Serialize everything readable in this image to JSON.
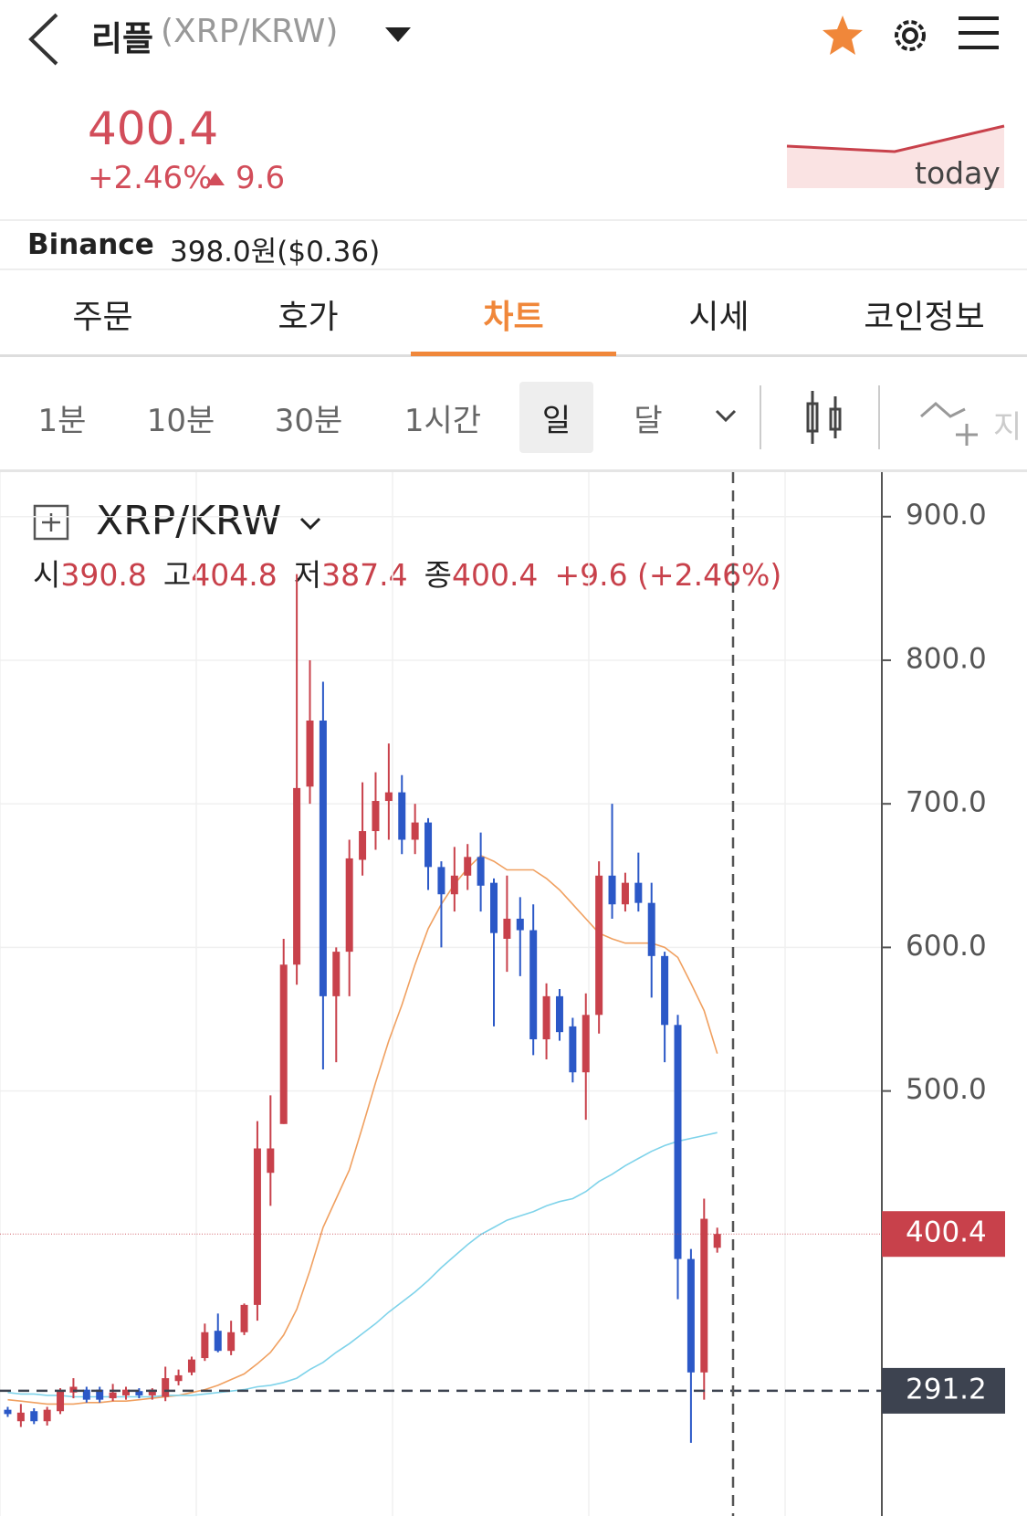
{
  "header": {
    "name": "리플",
    "pair": "(XRP/KRW)",
    "price": "400.4",
    "change_pct": "+2.46%",
    "change": "9.6",
    "spark_label": "today"
  },
  "exchange": {
    "name": "Binance",
    "price": "398.0원($0.36)"
  },
  "tabs": [
    "주문",
    "호가",
    "차트",
    "시세",
    "코인정보"
  ],
  "intervals": [
    "1분",
    "10분",
    "30분",
    "1시간",
    "일",
    "달"
  ],
  "tool_partial": "지",
  "chart_data": {
    "type": "candlestick",
    "symbol": "XRP/KRW",
    "legend": [
      {
        "label": "시",
        "value": 390.8
      },
      {
        "label": "고",
        "value": 404.8
      },
      {
        "label": "저",
        "value": 387.4
      },
      {
        "label": "종",
        "value": 400.4
      }
    ],
    "legend_change": "+9.6 (+2.46%)",
    "up_color": "#c8414b",
    "down_color": "#2b58c7",
    "open": [
      278,
      270,
      277,
      270,
      277,
      290,
      292,
      292,
      286,
      288,
      291,
      288,
      287,
      298,
      304,
      314,
      333,
      319,
      332,
      351,
      443,
      477,
      588,
      712,
      758,
      566,
      597,
      661,
      681,
      702,
      708,
      675,
      687,
      656,
      637,
      650,
      663,
      645,
      606,
      620,
      612,
      536,
      566,
      545,
      513,
      553,
      650,
      630,
      645,
      631,
      594,
      546,
      383,
      304,
      390.8
    ],
    "high": [
      280,
      282,
      279,
      280,
      293,
      300,
      294,
      294,
      296,
      294,
      293,
      293,
      308,
      306,
      315,
      338,
      345,
      340,
      352,
      479,
      497,
      606,
      860,
      800,
      785,
      600,
      675,
      715,
      722,
      742,
      720,
      700,
      690,
      660,
      670,
      672,
      680,
      648,
      650,
      635,
      630,
      575,
      571,
      551,
      568,
      660,
      700,
      652,
      666,
      645,
      597,
      553,
      390,
      425,
      404.8
    ],
    "low": [
      273,
      266,
      268,
      267,
      275,
      286,
      283,
      283,
      284,
      285,
      286,
      285,
      284,
      295,
      302,
      312,
      318,
      316,
      330,
      340,
      420,
      477,
      574,
      700,
      515,
      520,
      566,
      650,
      668,
      675,
      665,
      665,
      640,
      600,
      625,
      640,
      625,
      545,
      583,
      580,
      525,
      522,
      535,
      506,
      480,
      540,
      620,
      625,
      625,
      565,
      520,
      355,
      255,
      285,
      387.4
    ],
    "close": [
      275,
      276,
      270,
      278,
      291,
      294,
      285,
      285,
      290,
      292,
      288,
      292,
      300,
      302,
      313,
      332,
      319,
      332,
      351,
      460,
      460,
      588,
      711,
      758,
      566,
      597,
      662,
      681,
      702,
      708,
      675,
      687,
      656,
      637,
      650,
      663,
      643,
      610,
      620,
      612,
      536,
      566,
      541,
      513,
      553,
      650,
      630,
      645,
      631,
      594,
      546,
      383,
      304,
      411,
      400.4
    ],
    "indicators": [
      {
        "color": "#f0a060",
        "values": [
          285,
          284,
          283,
          282,
          282,
          282,
          283,
          283,
          284,
          284,
          285,
          286,
          287,
          288,
          290,
          292,
          295,
          299,
          303,
          310,
          318,
          330,
          348,
          375,
          405,
          425,
          445,
          475,
          506,
          535,
          560,
          588,
          613,
          630,
          644,
          655,
          664,
          660,
          654,
          654,
          654,
          648,
          640,
          630,
          620,
          610,
          606,
          603,
          603,
          603,
          600,
          593,
          575,
          556,
          526
        ]
      },
      {
        "color": "#7fd3ea",
        "values": [
          290,
          289,
          289,
          288,
          288,
          287,
          287,
          287,
          287,
          287,
          287,
          287,
          288,
          288,
          288,
          289,
          290,
          291,
          292,
          294,
          295,
          297,
          300,
          306,
          311,
          318,
          324,
          331,
          338,
          346,
          353,
          360,
          368,
          377,
          385,
          393,
          400,
          405,
          410,
          413,
          416,
          420,
          423,
          425,
          430,
          437,
          442,
          448,
          453,
          458,
          462,
          465,
          467,
          469,
          471
        ]
      }
    ],
    "ylim": [
      204,
      931
    ],
    "yticks": [
      {
        "value": 900,
        "label": "900.0"
      },
      {
        "value": 800,
        "label": "800.0"
      },
      {
        "value": 700,
        "label": "700.0"
      },
      {
        "value": 600,
        "label": "600.0"
      },
      {
        "value": 500,
        "label": "500.0"
      }
    ],
    "price_line": {
      "value": 400.4,
      "label": "400.4",
      "color": "#c8414b"
    },
    "cross_line": {
      "value": 291.2,
      "label": "291.2",
      "color": "#3d4350"
    },
    "grid": true
  }
}
